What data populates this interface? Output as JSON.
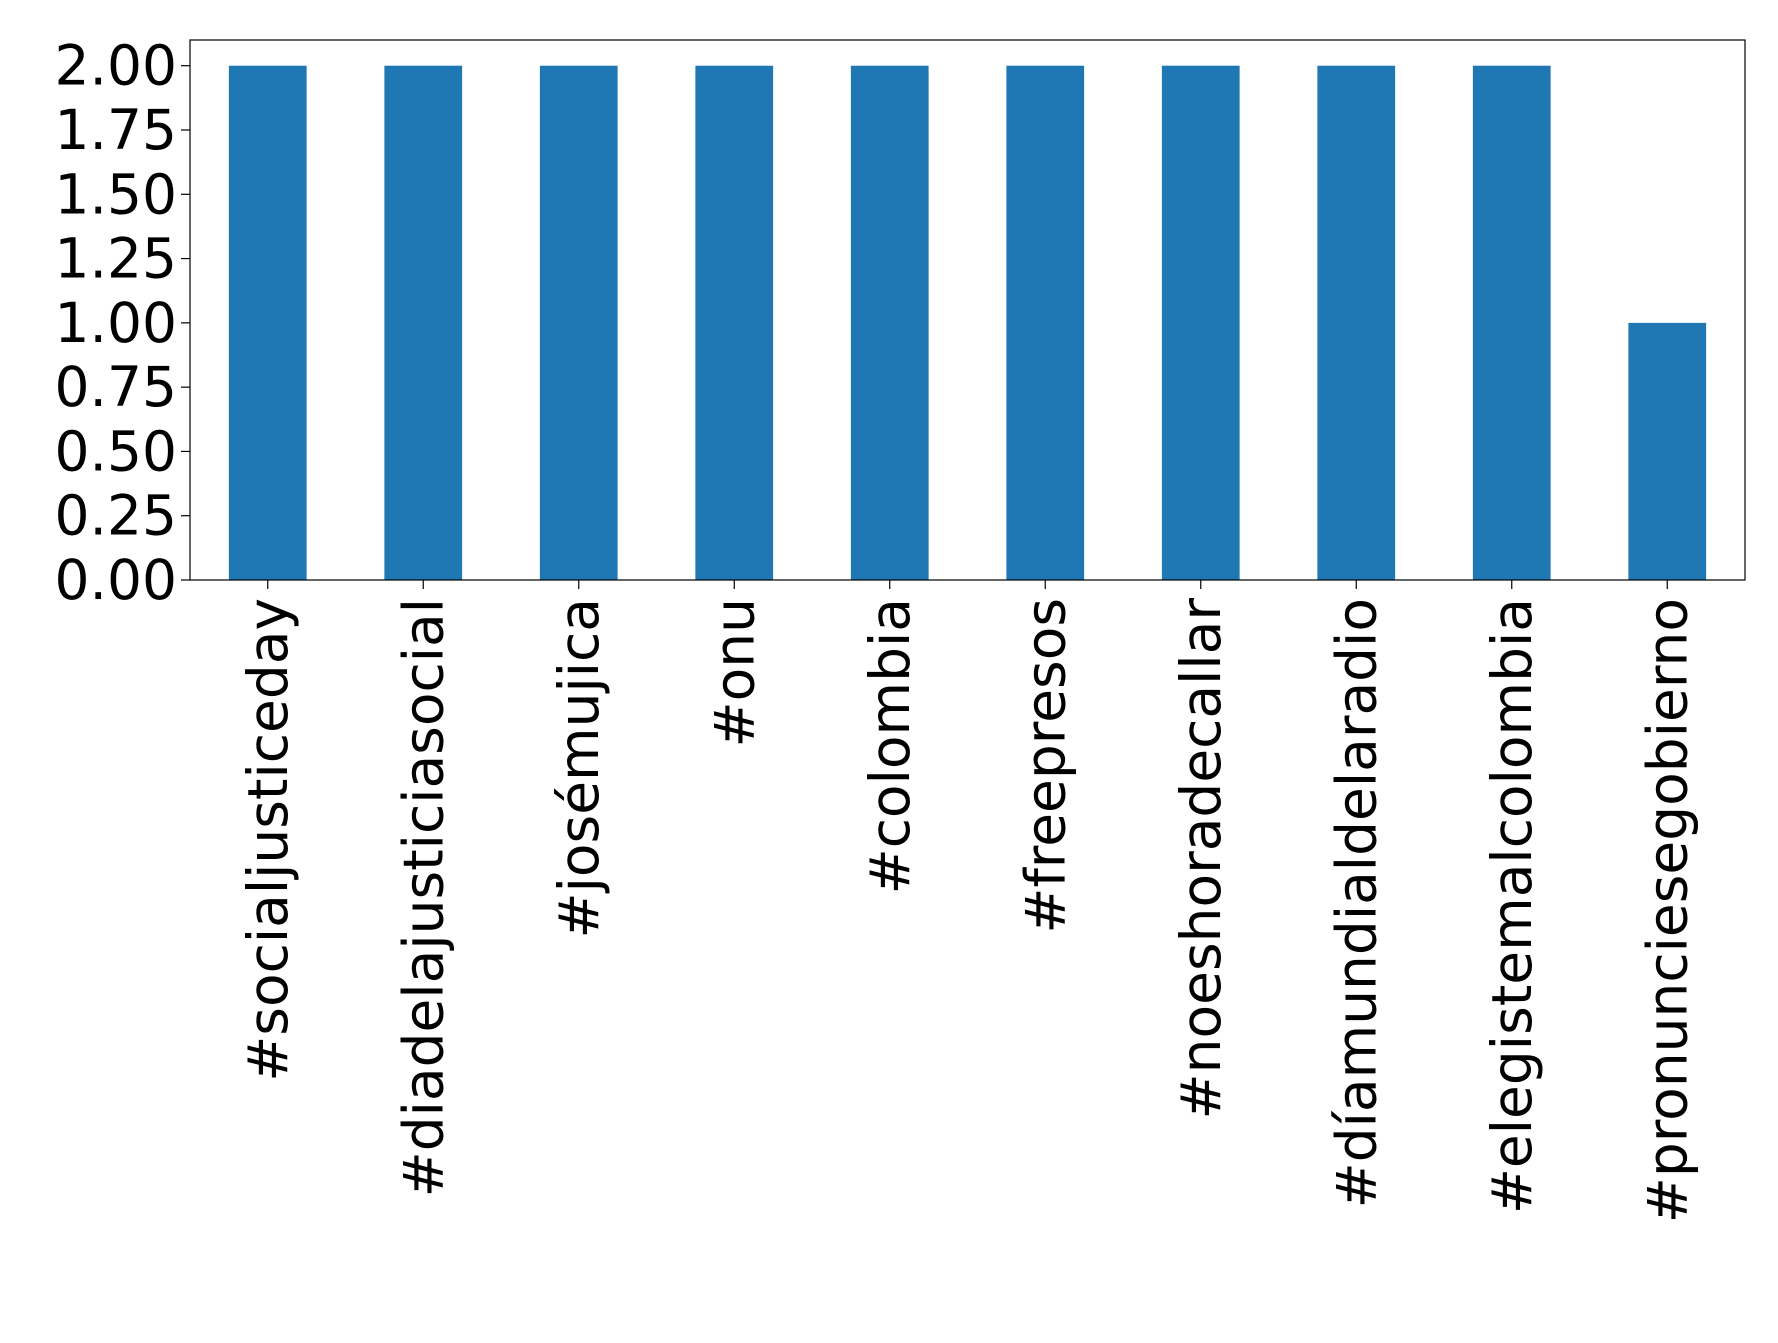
{
  "chart_data": {
    "type": "bar",
    "title": "",
    "xlabel": "",
    "ylabel": "",
    "categories": [
      "#socialjusticeday",
      "#diadelajusticiasocial",
      "#josémujica",
      "#onu",
      "#colombia",
      "#freepresos",
      "#noeshoradecallar",
      "#díamundialdelaradio",
      "#elegistemalcolombia",
      "#pronunciesegobierno"
    ],
    "values": [
      2,
      2,
      2,
      2,
      2,
      2,
      2,
      2,
      2,
      1
    ],
    "ylim": [
      0,
      2.1
    ],
    "yticks": [
      "0.00",
      "0.25",
      "0.50",
      "0.75",
      "1.00",
      "1.25",
      "1.50",
      "1.75",
      "2.00"
    ],
    "ytick_values": [
      0,
      0.25,
      0.5,
      0.75,
      1.0,
      1.25,
      1.5,
      1.75,
      2.0
    ],
    "grid": false,
    "legend": "none",
    "bar_color": "#1f77b4"
  }
}
